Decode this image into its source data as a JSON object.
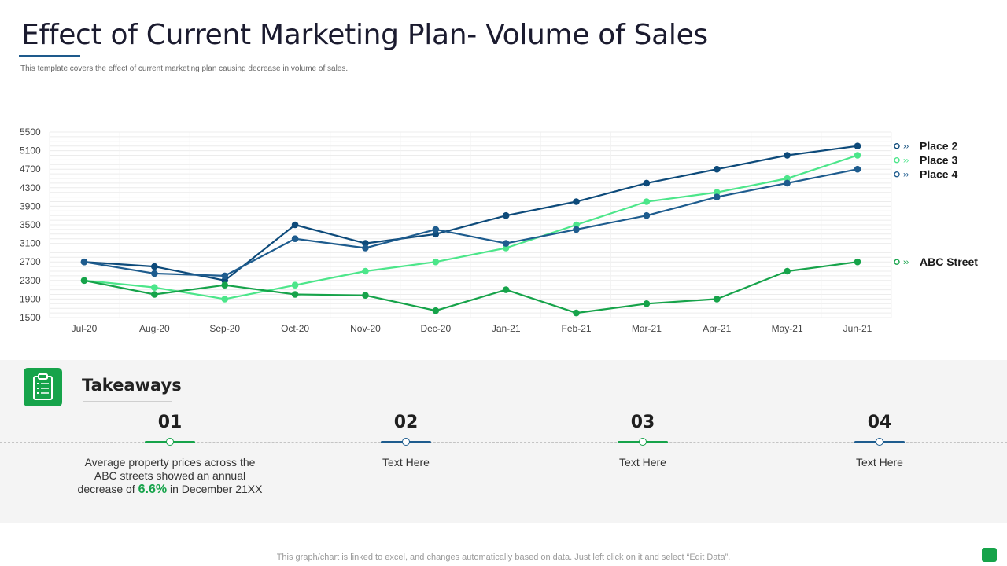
{
  "header": {
    "title": "Effect of Current Marketing Plan- Volume of Sales",
    "subtitle": "This template  covers the effect of current marketing plan  causing decrease in volume  of sales.,"
  },
  "chart_data": {
    "type": "line",
    "title": "",
    "xlabel": "",
    "ylabel": "",
    "categories": [
      "Jul-20",
      "Aug-20",
      "Sep-20",
      "Oct-20",
      "Nov-20",
      "Dec-20",
      "Jan-21",
      "Feb-21",
      "Mar-21",
      "Apr-21",
      "May-21",
      "Jun-21"
    ],
    "ylim": [
      1500,
      5500
    ],
    "yticks": [
      1500,
      1900,
      2300,
      2700,
      3100,
      3500,
      3900,
      4300,
      4700,
      5100,
      5500
    ],
    "grid": true,
    "legend": "right",
    "series": [
      {
        "name": "Place 2",
        "color": "#0d4a7a",
        "values": [
          2700,
          2600,
          2300,
          3500,
          3100,
          3300,
          3700,
          4000,
          4400,
          4700,
          5000,
          5200
        ]
      },
      {
        "name": "Place 3",
        "color": "#4ce68a",
        "values": [
          2300,
          2150,
          1900,
          2200,
          2500,
          2700,
          3000,
          3500,
          4000,
          4200,
          4500,
          5000
        ]
      },
      {
        "name": "Place 4",
        "color": "#1e5c8e",
        "values": [
          2700,
          2450,
          2400,
          3200,
          3000,
          3400,
          3100,
          3400,
          3700,
          4100,
          4400,
          4700
        ]
      },
      {
        "name": "ABC Street",
        "color": "#16a34a",
        "values": [
          2300,
          2000,
          2200,
          2000,
          1980,
          1650,
          2100,
          1600,
          1800,
          1900,
          2500,
          2700
        ]
      }
    ]
  },
  "takeaways": {
    "title": "Takeaways",
    "icon": "clipboard-icon",
    "items": [
      {
        "num": "01",
        "text_a": "Average property prices across the ABC streets showed an annual decrease of",
        "highlight": "6.6%",
        "text_b": "in December 21XX",
        "color": "#16a34a"
      },
      {
        "num": "02",
        "text": "Text Here",
        "color": "#1e5c8e"
      },
      {
        "num": "03",
        "text": "Text Here",
        "color": "#16a34a"
      },
      {
        "num": "04",
        "text": "Text Here",
        "color": "#1e5c8e"
      }
    ]
  },
  "footer": {
    "note": "This graph/chart is linked to excel,  and changes automatically based on data. Just left click on it and select “Edit Data”."
  },
  "colors": {
    "accent_green": "#16a34a",
    "accent_blue": "#1e5c8e"
  }
}
